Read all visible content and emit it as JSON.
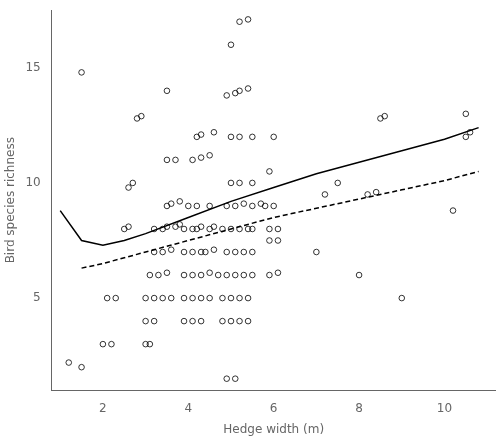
{
  "chart_data": {
    "type": "scatter",
    "xlabel": "Hedge width (m)",
    "ylabel": "Bird species richness",
    "xlim": [
      0.8,
      11.2
    ],
    "ylim": [
      1.0,
      17.5
    ],
    "xticks": [
      2,
      4,
      6,
      8,
      10
    ],
    "yticks": [
      5,
      10,
      15
    ],
    "grid": false,
    "series": [
      {
        "type": "scatter",
        "marker": "circle",
        "color": "#000000",
        "x": [
          1.2,
          1.5,
          1.5,
          2.0,
          2.2,
          2.1,
          2.3,
          2.5,
          2.6,
          2.6,
          2.7,
          2.8,
          2.9,
          3.0,
          3.1,
          3.0,
          3.2,
          3.0,
          3.2,
          3.4,
          3.6,
          3.1,
          3.3,
          3.5,
          3.2,
          3.4,
          3.6,
          3.2,
          3.4,
          3.5,
          3.7,
          3.8,
          3.5,
          3.6,
          3.8,
          3.5,
          3.7,
          3.5,
          3.9,
          4.1,
          4.3,
          3.9,
          4.1,
          4.3,
          4.5,
          3.9,
          4.1,
          4.3,
          4.5,
          3.9,
          4.1,
          4.3,
          4.4,
          4.6,
          3.9,
          4.1,
          4.2,
          4.3,
          4.5,
          4.6,
          4.0,
          4.2,
          4.5,
          4.1,
          4.3,
          4.5,
          4.2,
          4.3,
          4.6,
          4.9,
          5.1,
          4.8,
          5.0,
          5.2,
          5.4,
          4.8,
          5.0,
          5.2,
          5.4,
          4.7,
          4.9,
          5.1,
          5.3,
          5.5,
          4.9,
          5.1,
          5.3,
          5.5,
          4.8,
          5.0,
          5.2,
          5.4,
          5.5,
          4.9,
          5.1,
          5.3,
          5.5,
          5.7,
          5.0,
          5.2,
          5.5,
          5.0,
          5.2,
          5.5,
          4.9,
          5.1,
          5.2,
          5.4,
          5.0,
          5.2,
          5.4,
          5.9,
          6.1,
          5.9,
          6.1,
          5.9,
          6.1,
          5.8,
          6.0,
          5.9,
          6.0,
          7.0,
          7.2,
          7.5,
          8.0,
          8.2,
          8.4,
          8.5,
          8.6,
          9.0,
          10.2,
          10.5,
          10.6,
          10.5
        ],
        "values": [
          2.2,
          2.0,
          14.8,
          3.0,
          3.0,
          5.0,
          5.0,
          8.0,
          8.1,
          9.8,
          10.0,
          12.8,
          12.9,
          3.0,
          3.0,
          4.0,
          4.0,
          5.0,
          5.0,
          5.0,
          5.0,
          6.0,
          6.0,
          6.1,
          7.0,
          7.0,
          7.1,
          8.0,
          8.0,
          8.1,
          8.1,
          8.2,
          9.0,
          9.1,
          9.2,
          11.0,
          11.0,
          14.0,
          4.0,
          4.0,
          4.0,
          5.0,
          5.0,
          5.0,
          5.0,
          6.0,
          6.0,
          6.0,
          6.1,
          7.0,
          7.0,
          7.0,
          7.0,
          7.1,
          8.0,
          8.0,
          8.0,
          8.1,
          8.0,
          8.1,
          9.0,
          9.0,
          9.0,
          11.0,
          11.1,
          11.2,
          12.0,
          12.1,
          12.2,
          1.5,
          1.5,
          4.0,
          4.0,
          4.0,
          4.0,
          5.0,
          5.0,
          5.0,
          5.0,
          6.0,
          6.0,
          6.0,
          6.0,
          6.0,
          7.0,
          7.0,
          7.0,
          7.0,
          8.0,
          8.0,
          8.0,
          8.0,
          8.0,
          9.0,
          9.0,
          9.1,
          9.0,
          9.1,
          10.0,
          10.0,
          10.0,
          12.0,
          12.0,
          12.0,
          13.8,
          13.9,
          14.0,
          14.1,
          16.0,
          17.0,
          17.1,
          6.0,
          6.1,
          7.5,
          7.5,
          8.0,
          8.0,
          9.0,
          9.0,
          10.5,
          12.0,
          7.0,
          9.5,
          10.0,
          6.0,
          9.5,
          9.6,
          12.8,
          12.9,
          5.0,
          8.8,
          12.0,
          12.2,
          13.0
        ]
      },
      {
        "type": "line",
        "line_style": "solid",
        "color": "#000000",
        "x": [
          1.0,
          1.5,
          2.0,
          2.5,
          3.0,
          4.0,
          5.0,
          6.0,
          7.0,
          8.0,
          9.0,
          10.0,
          10.8
        ],
        "values": [
          8.8,
          7.5,
          7.3,
          7.5,
          7.8,
          8.5,
          9.2,
          9.8,
          10.4,
          10.9,
          11.4,
          11.9,
          12.4
        ]
      },
      {
        "type": "line",
        "line_style": "dashed",
        "color": "#000000",
        "x": [
          1.5,
          2.0,
          3.0,
          4.0,
          5.0,
          6.0,
          7.0,
          8.0,
          9.0,
          10.0,
          10.8
        ],
        "values": [
          6.3,
          6.5,
          7.0,
          7.5,
          8.0,
          8.5,
          8.9,
          9.3,
          9.7,
          10.1,
          10.5
        ]
      }
    ]
  }
}
